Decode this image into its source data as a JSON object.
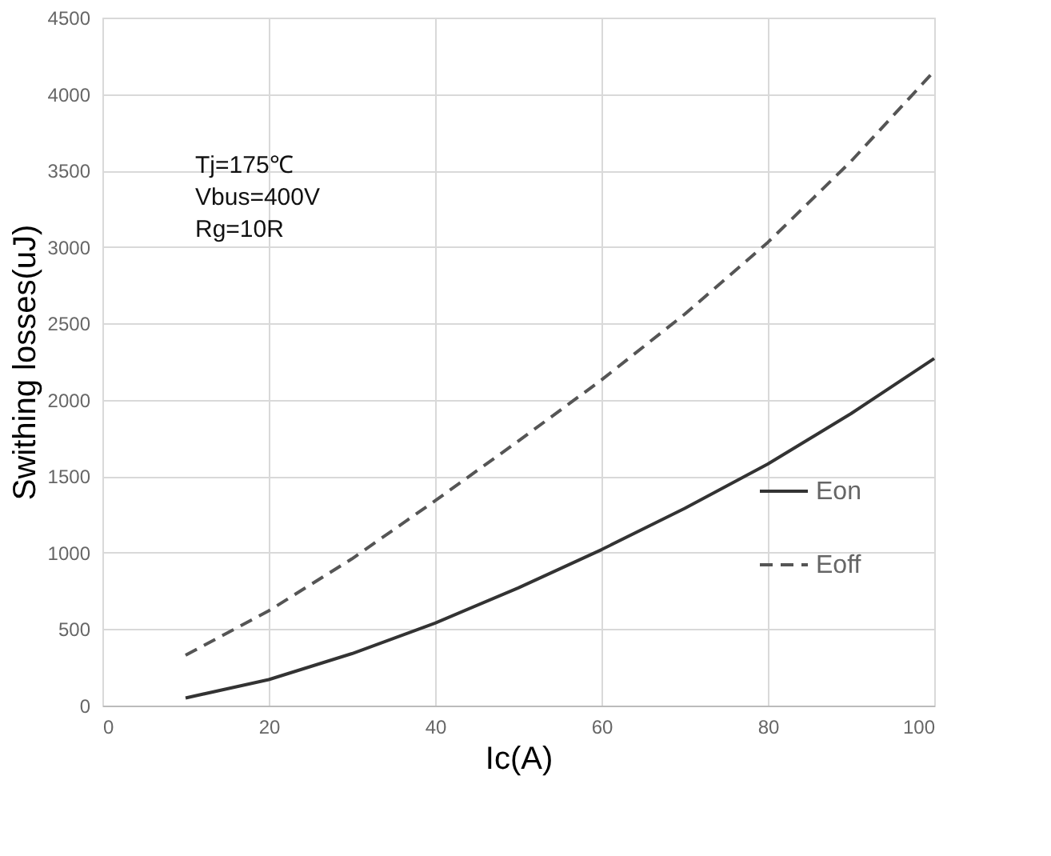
{
  "chart_data": {
    "type": "line",
    "xlabel": "Ic(A)",
    "ylabel": "Swithing losses(uJ)",
    "x": [
      10,
      20,
      30,
      40,
      50,
      60,
      70,
      80,
      90,
      100
    ],
    "series": [
      {
        "name": "Eon",
        "color": "#333333",
        "line_style": "solid",
        "values": [
          50,
          170,
          340,
          540,
          770,
          1020,
          1290,
          1580,
          1910,
          2270
        ]
      },
      {
        "name": "Eoff",
        "color": "#555555",
        "line_style": "dashed",
        "values": [
          330,
          620,
          960,
          1340,
          1730,
          2130,
          2560,
          3030,
          3560,
          4150
        ]
      }
    ],
    "xlim": [
      0,
      100
    ],
    "xticks": [
      0,
      20,
      40,
      60,
      80,
      100
    ],
    "ylim": [
      0,
      4500
    ],
    "yticks": [
      0,
      500,
      1000,
      1500,
      2000,
      2500,
      3000,
      3500,
      4000,
      4500
    ],
    "grid": true,
    "legend": "bottom right",
    "marker": "none",
    "annotations": [
      "Tj=175℃",
      "Vbus=400V",
      "Rg=10R"
    ]
  }
}
